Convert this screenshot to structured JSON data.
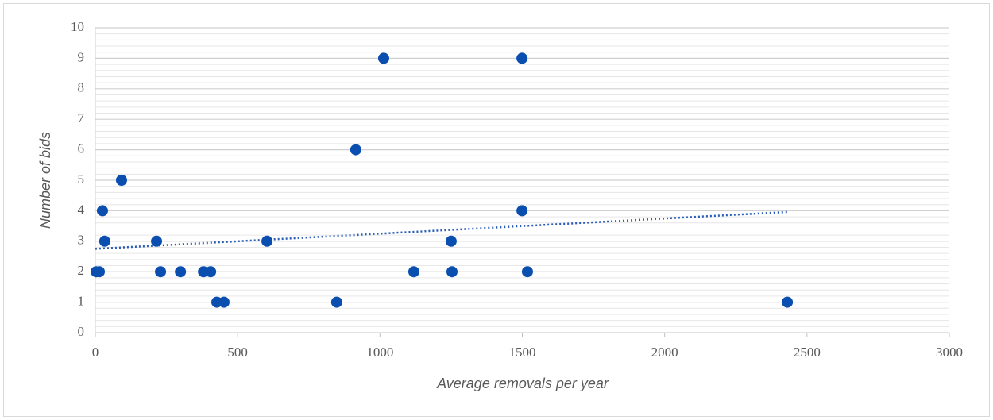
{
  "chart_data": {
    "type": "scatter",
    "x_label": "Average  removals per year",
    "y_label": "Number of bids",
    "x": [
      3,
      14,
      25,
      33,
      92,
      215,
      229,
      299,
      380,
      405,
      427,
      452,
      603,
      848,
      915,
      1013,
      1119,
      1250,
      1253,
      1499,
      1499,
      1518,
      2431
    ],
    "series": [
      {
        "color": "#0a4fb0",
        "values": [
          2,
          2,
          4,
          3,
          5,
          3,
          2,
          2,
          2,
          2,
          1,
          1,
          3,
          1,
          6,
          9,
          2,
          3,
          2,
          9,
          4,
          2,
          1
        ]
      }
    ],
    "trendline": {
      "x": [
        0,
        2431
      ],
      "y": [
        2.75,
        3.96
      ],
      "color": "#2a5db8",
      "style": "dotted"
    },
    "xlim": [
      0,
      3000
    ],
    "xticks": [
      0,
      500,
      1000,
      1500,
      2000,
      2500,
      3000
    ],
    "ylim": [
      0,
      10
    ],
    "yticks": [
      0,
      1,
      2,
      3,
      4,
      5,
      6,
      7,
      8,
      9,
      10
    ],
    "grid": true,
    "minor_divisions": 5
  }
}
